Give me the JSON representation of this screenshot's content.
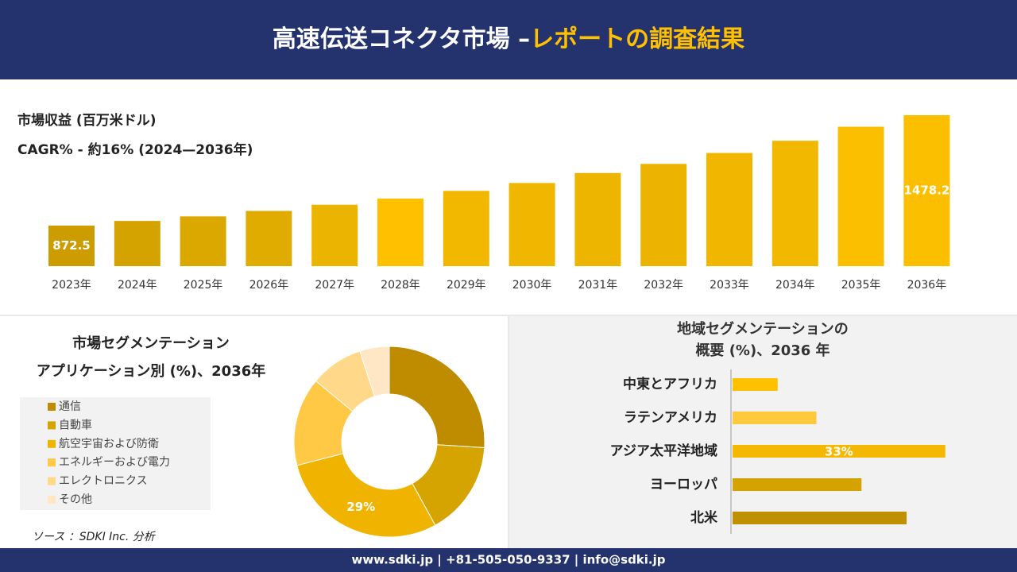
{
  "header": {
    "title_main": "高速伝送コネクタ市場 –",
    "title_highlight": "レポートの調査結果"
  },
  "chart_data": [
    {
      "type": "bar",
      "title": "市場収益 (百万米ドル)",
      "subtitle": "CAGR% - 約16% (2024—2036年)",
      "categories": [
        "2023年",
        "2024年",
        "2025年",
        "2026年",
        "2027年",
        "2028年",
        "2029年",
        "2030年",
        "2031年",
        "2032年",
        "2033年",
        "2034年",
        "2035年",
        "2036年"
      ],
      "values": [
        872.5,
        898,
        923,
        953,
        987,
        1021,
        1063,
        1106,
        1161,
        1211,
        1271,
        1338,
        1415,
        1478.2
      ],
      "value_labels": [
        "872.5",
        null,
        null,
        null,
        null,
        null,
        null,
        null,
        null,
        null,
        null,
        null,
        null,
        "1478.2"
      ],
      "colors": [
        "#cc9c00",
        "#d4a300",
        "#dba800",
        "#e0ac00",
        "#eab400",
        "#ffc000",
        "#f2b800",
        "#f0b600",
        "#eeb500",
        "#ecb300",
        "#f0b600",
        "#f2b800",
        "#fcbf00",
        "#fcbf00"
      ],
      "ylim": [
        650,
        1500
      ]
    },
    {
      "type": "donut",
      "title": "市場セグメンテーション",
      "subtitle": "アプリケーション別 (%)、2036年",
      "categories": [
        "通信",
        "自動車",
        "航空宇宙および防衛",
        "エネルギーおよび電力",
        "エレクトロニクス",
        "その他"
      ],
      "values": [
        26,
        16,
        29,
        15,
        9,
        5
      ],
      "value_labels": [
        null,
        null,
        "29%",
        null,
        null,
        null
      ],
      "colors": [
        "#bf8c00",
        "#d6a400",
        "#f0b400",
        "#ffc845",
        "#ffd88a",
        "#ffe6c4"
      ]
    },
    {
      "type": "bar",
      "orientation": "horizontal",
      "title": [
        "地域セグメンテーションの",
        "概要 (%)、2036 年"
      ],
      "categories": [
        "中東とアフリカ",
        "ラテンアメリカ",
        "アジア太平洋地域",
        "ヨーロッパ",
        "北米"
      ],
      "values": [
        7,
        13,
        33,
        20,
        27
      ],
      "value_labels": [
        null,
        null,
        "33%",
        null,
        null
      ],
      "colors": [
        "#ffc000",
        "#ffc93c",
        "#f5b800",
        "#d4a300",
        "#bf9000"
      ],
      "xlim": [
        0,
        35
      ]
    }
  ],
  "source": "ソース ：SDKI Inc. 分析",
  "footer": "www.sdki.jp | +81-505-050-9337 | info@sdki.jp"
}
